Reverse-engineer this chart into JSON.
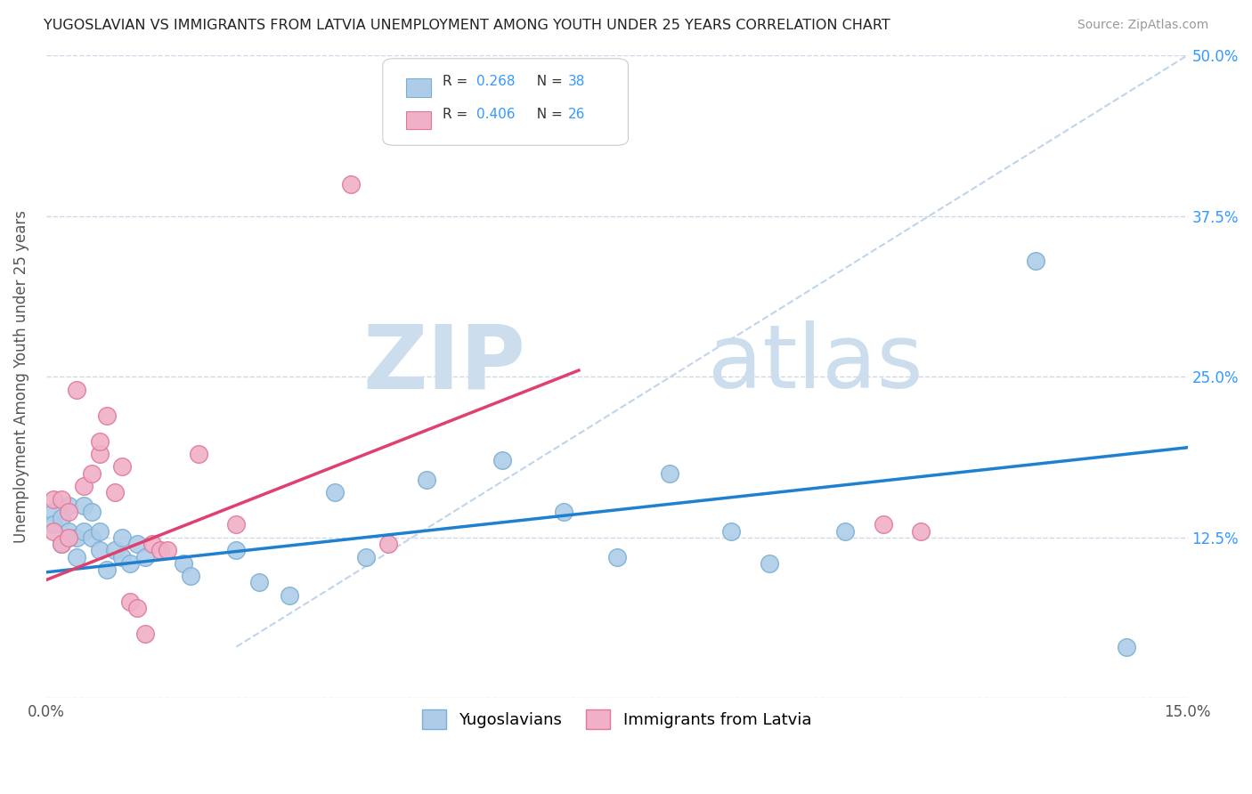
{
  "title": "YUGOSLAVIAN VS IMMIGRANTS FROM LATVIA UNEMPLOYMENT AMONG YOUTH UNDER 25 YEARS CORRELATION CHART",
  "source": "Source: ZipAtlas.com",
  "ylabel": "Unemployment Among Youth under 25 years",
  "xlim": [
    0.0,
    0.15
  ],
  "ylim": [
    0.0,
    0.5
  ],
  "xticks": [
    0.0,
    0.03,
    0.06,
    0.09,
    0.12,
    0.15
  ],
  "xticklabels": [
    "0.0%",
    "",
    "",
    "",
    "",
    "15.0%"
  ],
  "yticks": [
    0.0,
    0.125,
    0.25,
    0.375,
    0.5
  ],
  "yticklabels": [
    "",
    "12.5%",
    "25.0%",
    "37.5%",
    "50.0%"
  ],
  "r1": "0.268",
  "n1": "38",
  "r2": "0.406",
  "n2": "26",
  "legend_label1": "Yugoslavians",
  "legend_label2": "Immigrants from Latvia",
  "blue_color": "#aecce8",
  "blue_edge": "#7aafd4",
  "pink_color": "#f0b0c8",
  "pink_edge": "#e07898",
  "line_blue": "#2080d0",
  "line_pink": "#e04070",
  "line_dash_color": "#c0d4ec",
  "watermark_zip": "ZIP",
  "watermark_atlas": "atlas",
  "watermark_color": "#ccdded",
  "background_color": "#ffffff",
  "grid_color": "#d0d8e8",
  "blue_x": [
    0.001,
    0.001,
    0.002,
    0.002,
    0.003,
    0.003,
    0.004,
    0.004,
    0.005,
    0.005,
    0.006,
    0.006,
    0.007,
    0.007,
    0.008,
    0.009,
    0.01,
    0.01,
    0.011,
    0.012,
    0.013,
    0.018,
    0.019,
    0.025,
    0.028,
    0.032,
    0.038,
    0.042,
    0.05,
    0.06,
    0.068,
    0.075,
    0.082,
    0.09,
    0.095,
    0.105,
    0.13,
    0.142
  ],
  "blue_y": [
    0.145,
    0.135,
    0.14,
    0.12,
    0.15,
    0.13,
    0.11,
    0.125,
    0.15,
    0.13,
    0.125,
    0.145,
    0.13,
    0.115,
    0.1,
    0.115,
    0.125,
    0.11,
    0.105,
    0.12,
    0.11,
    0.105,
    0.095,
    0.115,
    0.09,
    0.08,
    0.16,
    0.11,
    0.17,
    0.185,
    0.145,
    0.11,
    0.175,
    0.13,
    0.105,
    0.13,
    0.34,
    0.04
  ],
  "pink_x": [
    0.001,
    0.001,
    0.002,
    0.002,
    0.003,
    0.003,
    0.004,
    0.005,
    0.006,
    0.007,
    0.007,
    0.008,
    0.009,
    0.01,
    0.011,
    0.012,
    0.013,
    0.014,
    0.015,
    0.016,
    0.02,
    0.025,
    0.04,
    0.045,
    0.11,
    0.115
  ],
  "pink_y": [
    0.155,
    0.13,
    0.155,
    0.12,
    0.145,
    0.125,
    0.24,
    0.165,
    0.175,
    0.19,
    0.2,
    0.22,
    0.16,
    0.18,
    0.075,
    0.07,
    0.05,
    0.12,
    0.115,
    0.115,
    0.19,
    0.135,
    0.4,
    0.12,
    0.135,
    0.13
  ]
}
